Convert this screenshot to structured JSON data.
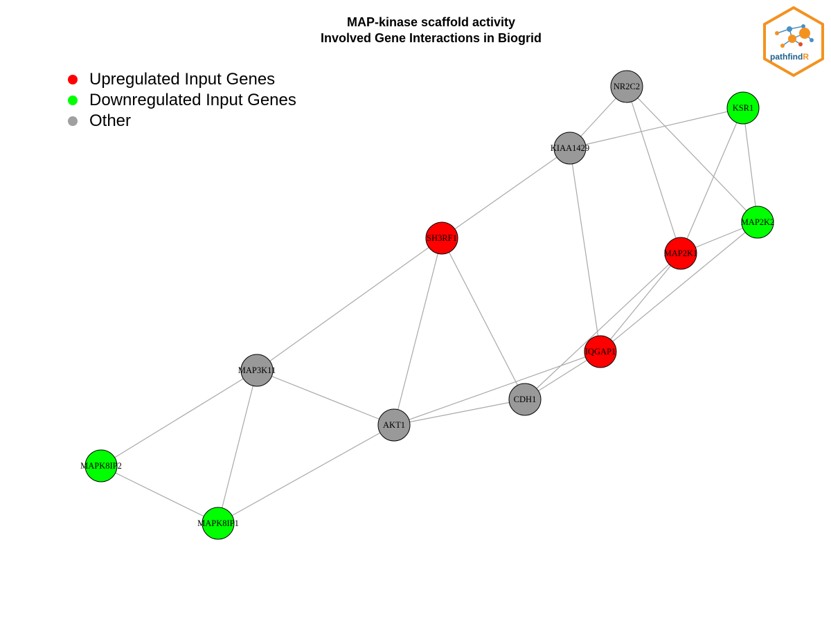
{
  "title": {
    "line1": "MAP-kinase scaffold activity",
    "line2": "Involved Gene Interactions in Biogrid"
  },
  "legend": [
    {
      "label": "Upregulated Input Genes",
      "color": "#ff0000"
    },
    {
      "label": "Downregulated Input Genes",
      "color": "#00ff00"
    },
    {
      "label": "Other",
      "color": "#a0a0a0"
    }
  ],
  "logo": {
    "text_main": "pathfind",
    "text_accent": "R",
    "icon": "network-hexagon-logo"
  },
  "colors": {
    "up": "#ff0000",
    "down": "#00ff00",
    "other": "#999999",
    "edge": "#a8a8a8"
  },
  "nodes": [
    {
      "id": "NR2C2",
      "status": "other"
    },
    {
      "id": "KSR1",
      "status": "down"
    },
    {
      "id": "KIAA1429",
      "status": "other"
    },
    {
      "id": "MAP2K2",
      "status": "down"
    },
    {
      "id": "SH3RF1",
      "status": "up"
    },
    {
      "id": "MAP2K1",
      "status": "up"
    },
    {
      "id": "IQGAP1",
      "status": "up"
    },
    {
      "id": "MAP3K11",
      "status": "other"
    },
    {
      "id": "CDH1",
      "status": "other"
    },
    {
      "id": "AKT1",
      "status": "other"
    },
    {
      "id": "MAPK8IP2",
      "status": "down"
    },
    {
      "id": "MAPK8IP1",
      "status": "down"
    }
  ],
  "edges": [
    [
      "NR2C2",
      "KIAA1429"
    ],
    [
      "NR2C2",
      "MAP2K1"
    ],
    [
      "NR2C2",
      "MAP2K2"
    ],
    [
      "KSR1",
      "KIAA1429"
    ],
    [
      "KSR1",
      "MAP2K2"
    ],
    [
      "KSR1",
      "MAP2K1"
    ],
    [
      "KIAA1429",
      "SH3RF1"
    ],
    [
      "KIAA1429",
      "IQGAP1"
    ],
    [
      "SH3RF1",
      "MAP3K11"
    ],
    [
      "SH3RF1",
      "AKT1"
    ],
    [
      "SH3RF1",
      "CDH1"
    ],
    [
      "MAP2K1",
      "MAP2K2"
    ],
    [
      "MAP2K1",
      "IQGAP1"
    ],
    [
      "MAP2K1",
      "CDH1"
    ],
    [
      "MAP2K2",
      "IQGAP1"
    ],
    [
      "IQGAP1",
      "AKT1"
    ],
    [
      "IQGAP1",
      "CDH1"
    ],
    [
      "MAP3K11",
      "AKT1"
    ],
    [
      "MAP3K11",
      "MAPK8IP2"
    ],
    [
      "MAP3K11",
      "MAPK8IP1"
    ],
    [
      "CDH1",
      "AKT1"
    ],
    [
      "AKT1",
      "MAPK8IP1"
    ],
    [
      "MAPK8IP2",
      "MAPK8IP1"
    ]
  ]
}
